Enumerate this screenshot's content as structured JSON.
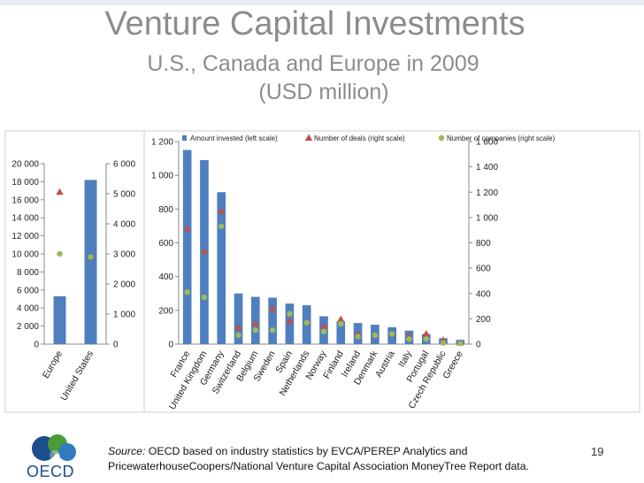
{
  "slide": {
    "title_line1": "Venture Capital Investments",
    "title_line2": "U.S., Canada and Europe in 2009",
    "title_line3": "(USD million)",
    "source_label": "Source:",
    "source_line1": " OECD based on industry statistics by EVCA/PEREP Analytics and",
    "source_line2": "PricewaterhouseCoopers/National Venture Capital Association MoneyTree Report data.",
    "page_number": "19",
    "logo_text": "OECD",
    "logo_colors": [
      "#1a4f8b",
      "#4c9a3a",
      "#2f7bbf"
    ]
  },
  "chart_data": [
    {
      "type": "bar",
      "categories": [
        "Europe",
        "United States"
      ],
      "series": [
        {
          "name": "Amount invested (left scale)",
          "kind": "bar",
          "values": [
            5300,
            18200
          ],
          "color": "#4f7fbe"
        },
        {
          "name": "Number of deals (right scale)",
          "kind": "marker-triangle",
          "values": [
            5050,
            2900
          ],
          "color": "#c0504d"
        },
        {
          "name": "Number of companies (right scale)",
          "kind": "marker-circle",
          "values": [
            3000,
            2900
          ],
          "color": "#9bbb59"
        }
      ],
      "left_axis": {
        "min": 0,
        "max": 20000,
        "ticks": [
          "0",
          "2 000",
          "4 000",
          "6 000",
          "8 000",
          "10 000",
          "12 000",
          "14 000",
          "16 000",
          "18 000",
          "20 000"
        ]
      },
      "right_axis": {
        "min": 0,
        "max": 6000,
        "ticks": [
          "0",
          "1 000",
          "2 000",
          "3 000",
          "4 000",
          "5 000",
          "6 000"
        ]
      },
      "grid": false
    },
    {
      "type": "bar",
      "categories": [
        "France",
        "United Kingdom",
        "Germany",
        "Switzerland",
        "Belgium",
        "Sweden",
        "Spain",
        "Netherlands",
        "Norway",
        "Finland",
        "Ireland",
        "Denmark",
        "Austria",
        "Italy",
        "Portugal",
        "Czech Republic",
        "Greece"
      ],
      "series": [
        {
          "name": "Amount invested (left scale)",
          "kind": "bar",
          "values": [
            1150,
            1090,
            900,
            300,
            280,
            275,
            240,
            230,
            165,
            135,
            125,
            115,
            100,
            80,
            60,
            35,
            25
          ],
          "color": "#4f7fbe"
        },
        {
          "name": "Number of deals (right scale)",
          "kind": "marker-triangle",
          "values": [
            910,
            730,
            1050,
            130,
            160,
            280,
            180,
            170,
            140,
            195,
            80,
            75,
            80,
            60,
            80,
            30,
            10
          ],
          "color": "#c0504d"
        },
        {
          "name": "Number of companies (right scale)",
          "kind": "marker-circle",
          "values": [
            410,
            370,
            930,
            70,
            110,
            110,
            240,
            170,
            100,
            160,
            60,
            70,
            80,
            40,
            40,
            10,
            5
          ],
          "color": "#9bbb59"
        }
      ],
      "left_axis": {
        "min": 0,
        "max": 1200,
        "ticks": [
          "0",
          "200",
          "400",
          "600",
          "800",
          "1 000",
          "1 200"
        ]
      },
      "right_axis": {
        "min": 0,
        "max": 1600,
        "ticks": [
          "0",
          "200",
          "400",
          "600",
          "800",
          "1 000",
          "1 200",
          "1 400",
          "1 600"
        ]
      },
      "legend_position": "top",
      "grid": false
    }
  ]
}
